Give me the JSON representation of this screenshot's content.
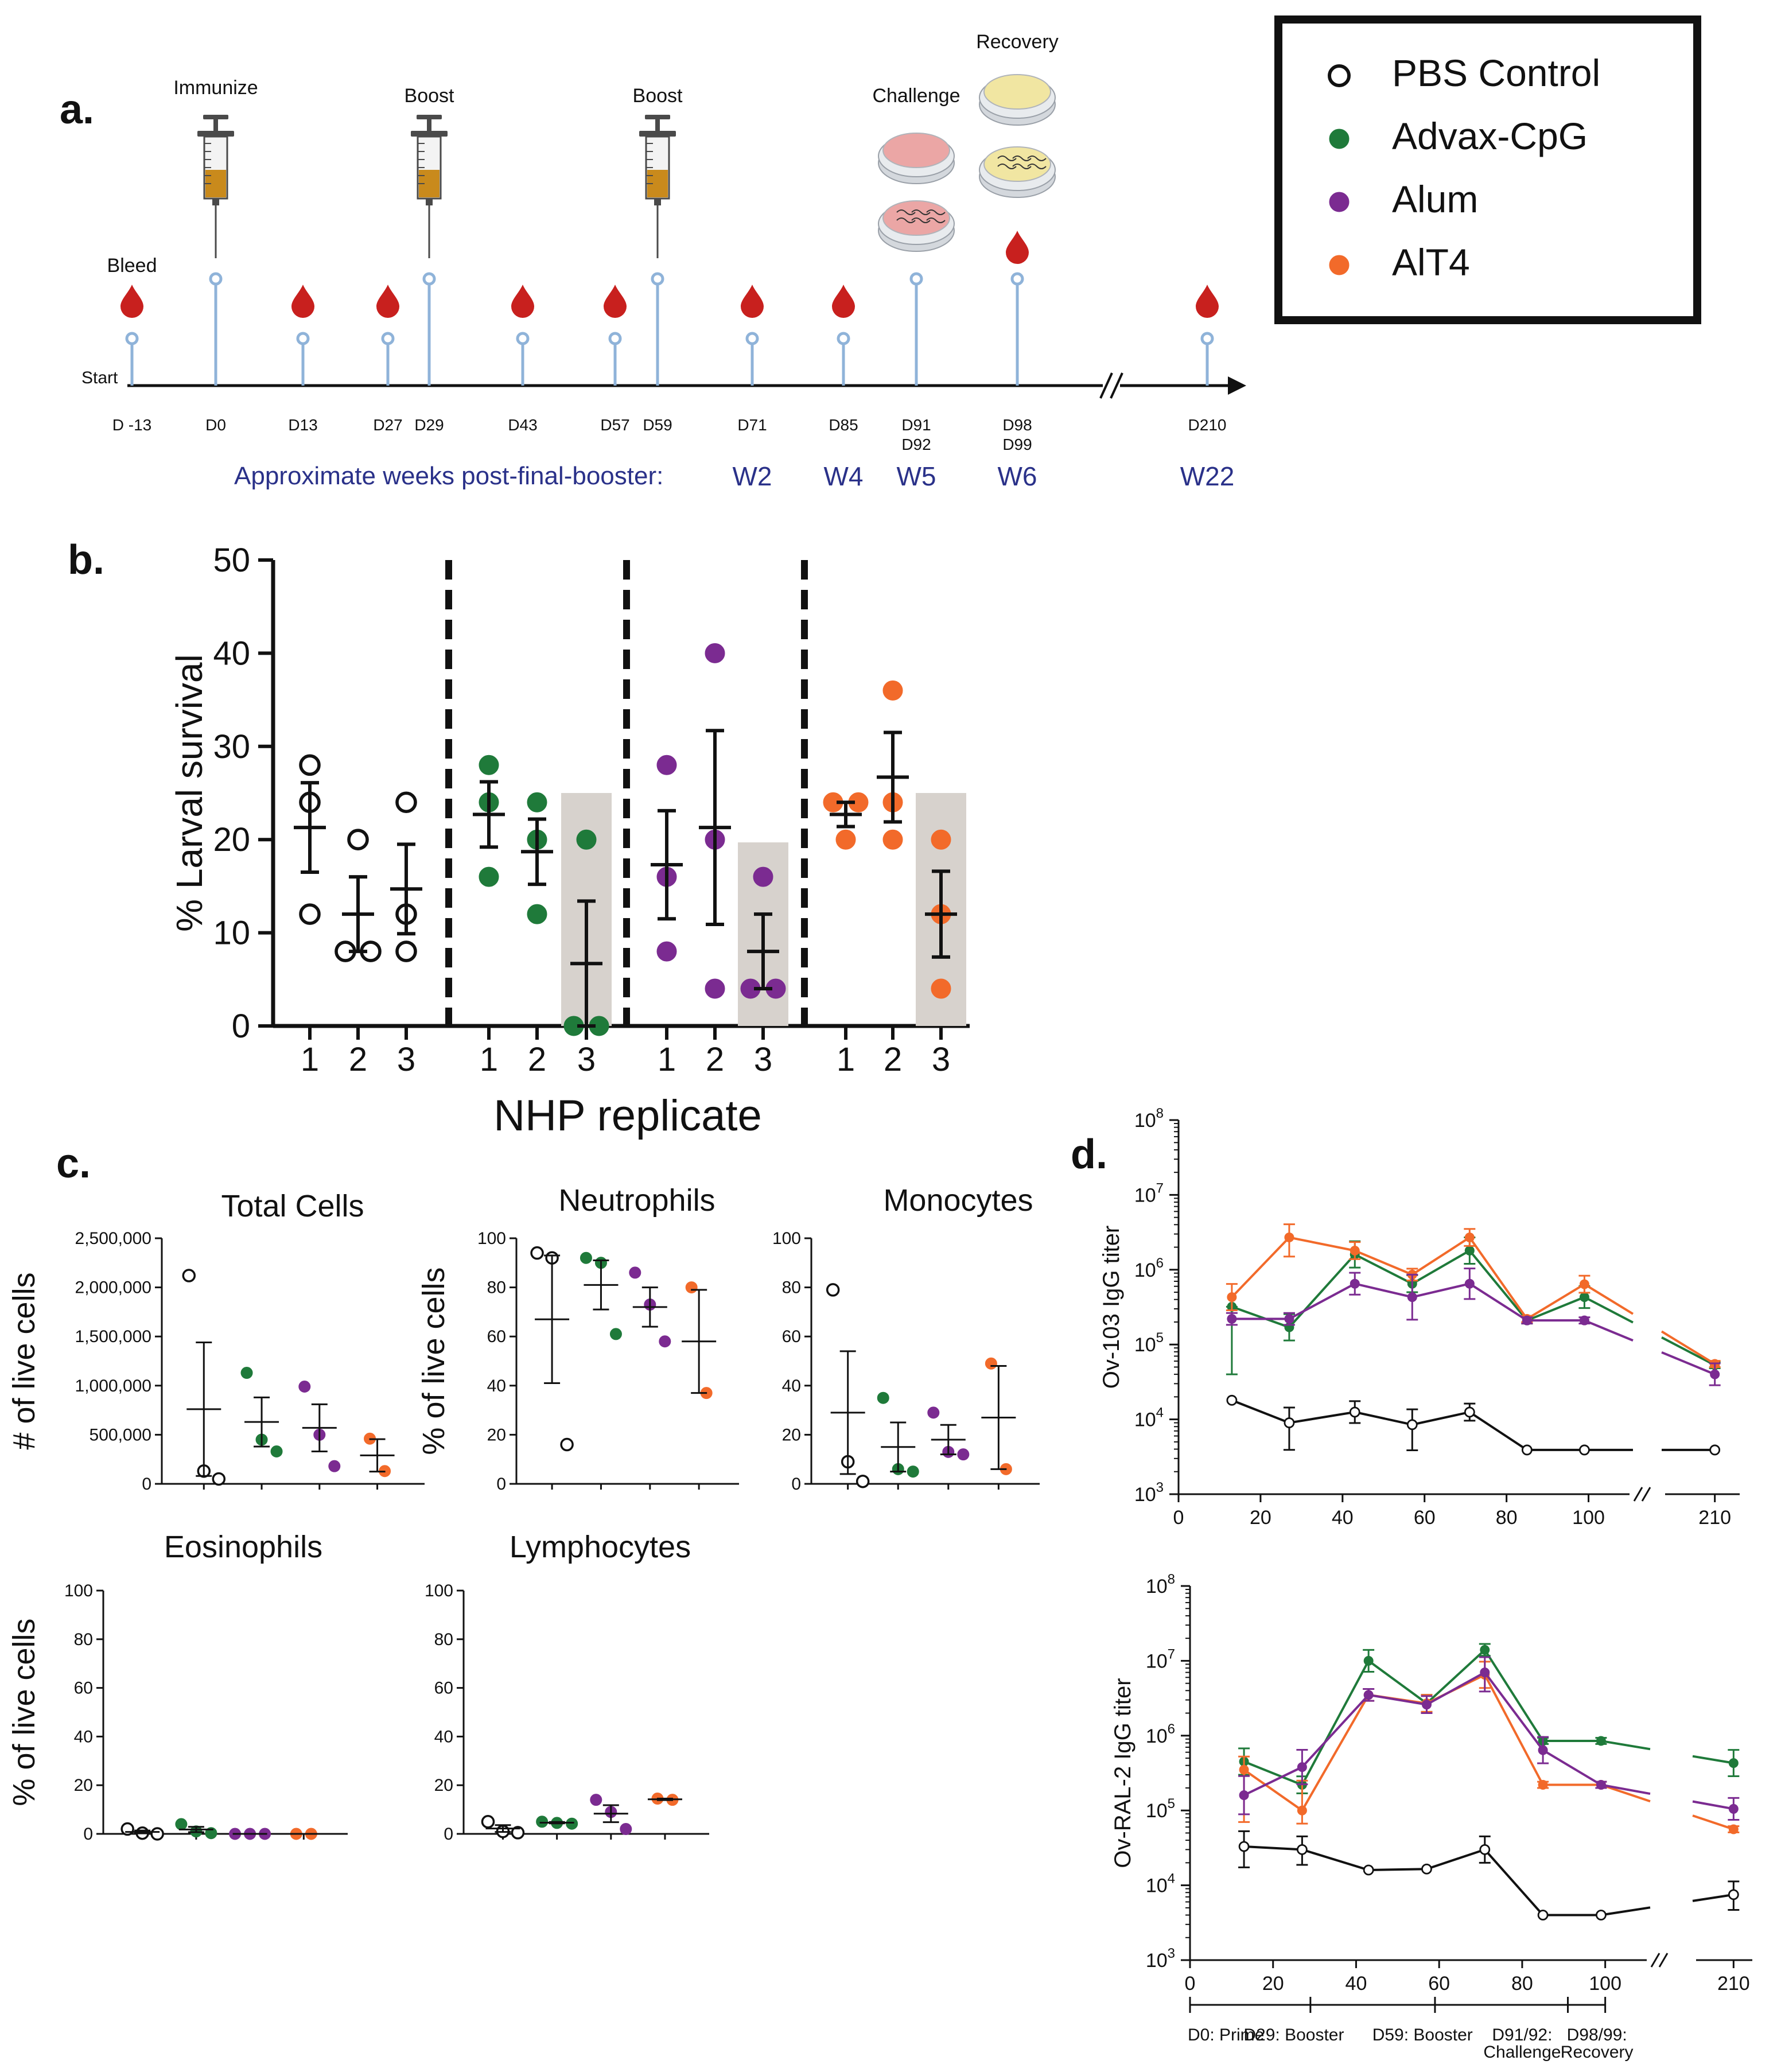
{
  "colors": {
    "pbs": "#111111",
    "advax": "#1f7a3a",
    "alum": "#7b2b91",
    "alt4": "#f26a2a",
    "blood": "#c8201e",
    "pin": "#8fb3d9",
    "week": "#2a3189",
    "shade": "#d7d2cd"
  },
  "panel_a": {
    "label": "a.",
    "start_label": "Start",
    "events": [
      {
        "day": "D -13",
        "event": "Bleed",
        "icon": "blood-drop-icon"
      },
      {
        "day": "D0",
        "event": "Immunize",
        "icon": "syringe-icon"
      },
      {
        "day": "D13",
        "event": "",
        "icon": "blood-drop-icon"
      },
      {
        "day": "D27",
        "event": "",
        "icon": "blood-drop-icon"
      },
      {
        "day": "D29",
        "event": "Boost",
        "icon": "syringe-icon"
      },
      {
        "day": "D43",
        "event": "",
        "icon": "blood-drop-icon"
      },
      {
        "day": "D57",
        "event": "",
        "icon": "blood-drop-icon"
      },
      {
        "day": "D59",
        "event": "Boost",
        "icon": "syringe-icon"
      },
      {
        "day": "D71",
        "event": "",
        "icon": "blood-drop-icon"
      },
      {
        "day": "D85",
        "event": "",
        "icon": "blood-drop-icon"
      },
      {
        "day": "D91",
        "day2": "D92",
        "event": "Challenge",
        "icon": "petri-dish-icon"
      },
      {
        "day": "D98",
        "day2": "D99",
        "event": "Recovery",
        "icon": "petri-dish-icon"
      },
      {
        "day": "D210",
        "event": "",
        "icon": "blood-drop-icon"
      }
    ],
    "weeks_caption": "Approximate weeks post-final-booster:",
    "weeks": [
      "W2",
      "W4",
      "W5",
      "W6",
      "W22"
    ]
  },
  "legend": {
    "items": [
      {
        "label": "PBS Control",
        "key": "pbs",
        "open": true
      },
      {
        "label": "Advax-CpG",
        "key": "advax",
        "open": false
      },
      {
        "label": "Alum",
        "key": "alum",
        "open": false
      },
      {
        "label": "AlT4",
        "key": "alt4",
        "open": false
      }
    ]
  },
  "chart_data": [
    {
      "panel": "b.",
      "type": "scatter",
      "ylabel": "% Larval survival",
      "xlabel": "NHP replicate",
      "ylim": [
        0,
        50
      ],
      "yticks": [
        0,
        10,
        20,
        30,
        40,
        50
      ],
      "groups": [
        {
          "key": "pbs",
          "replicates": [
            {
              "label": "1",
              "points": [
                28,
                24,
                12
              ],
              "mean": 21.3,
              "sem": 4.8,
              "shaded": false
            },
            {
              "label": "2",
              "points": [
                20,
                8,
                8
              ],
              "mean": 12.0,
              "sem": 4.0,
              "shaded": false
            },
            {
              "label": "3",
              "points": [
                24,
                12,
                8
              ],
              "mean": 14.7,
              "sem": 4.8,
              "shaded": false
            }
          ]
        },
        {
          "key": "advax",
          "replicates": [
            {
              "label": "1",
              "points": [
                28,
                24,
                16
              ],
              "mean": 22.7,
              "sem": 3.5,
              "shaded": false
            },
            {
              "label": "2",
              "points": [
                24,
                20,
                12
              ],
              "mean": 18.7,
              "sem": 3.5,
              "shaded": false
            },
            {
              "label": "3",
              "points": [
                20,
                0,
                0
              ],
              "mean": 6.7,
              "sem": 6.7,
              "shaded": true,
              "shade_top": 25
            }
          ]
        },
        {
          "key": "alum",
          "replicates": [
            {
              "label": "1",
              "points": [
                28,
                16,
                8
              ],
              "mean": 17.3,
              "sem": 5.8,
              "shaded": false
            },
            {
              "label": "2",
              "points": [
                40,
                20,
                4
              ],
              "mean": 21.3,
              "sem": 10.4,
              "shaded": false
            },
            {
              "label": "3",
              "points": [
                16,
                4,
                4
              ],
              "mean": 8.0,
              "sem": 4.0,
              "shaded": true,
              "shade_top": 19.7
            }
          ]
        },
        {
          "key": "alt4",
          "replicates": [
            {
              "label": "1",
              "points": [
                24,
                24,
                20
              ],
              "mean": 22.7,
              "sem": 1.3,
              "shaded": false
            },
            {
              "label": "2",
              "points": [
                36,
                24,
                20
              ],
              "mean": 26.7,
              "sem": 4.8,
              "shaded": false
            },
            {
              "label": "3",
              "points": [
                20,
                12,
                4
              ],
              "mean": 12.0,
              "sem": 4.6,
              "shaded": true,
              "shade_top": 25
            }
          ]
        }
      ]
    },
    {
      "panel": "c.",
      "type": "scatter",
      "subplots": [
        {
          "title": "Total Cells",
          "ylabel": "# of live cells",
          "ylim": [
            0,
            2500000
          ],
          "yticks": [
            "0",
            "500,000",
            "1,000,000",
            "1,500,000",
            "2,000,000",
            "2,500,000"
          ],
          "groups": [
            {
              "key": "pbs",
              "points": [
                2120000,
                130000,
                50000
              ],
              "mean": 760000,
              "sem": 680000
            },
            {
              "key": "advax",
              "points": [
                1130000,
                450000,
                330000
              ],
              "mean": 630000,
              "sem": 250000
            },
            {
              "key": "alum",
              "points": [
                990000,
                500000,
                180000
              ],
              "mean": 570000,
              "sem": 240000
            },
            {
              "key": "alt4",
              "points": [
                460000,
                130000
              ],
              "mean": 290000,
              "sem": 165000
            }
          ]
        },
        {
          "title": "Neutrophils",
          "ylabel": "% of live cells",
          "ylim": [
            0,
            100
          ],
          "yticks": [
            "0",
            "20",
            "40",
            "60",
            "80",
            "100"
          ],
          "groups": [
            {
              "key": "pbs",
              "points": [
                94,
                92,
                16
              ],
              "mean": 67,
              "sem": 26
            },
            {
              "key": "advax",
              "points": [
                92,
                90,
                61
              ],
              "mean": 81,
              "sem": 10
            },
            {
              "key": "alum",
              "points": [
                86,
                73,
                58
              ],
              "mean": 72,
              "sem": 8
            },
            {
              "key": "alt4",
              "points": [
                80,
                37
              ],
              "mean": 58,
              "sem": 21
            }
          ]
        },
        {
          "title": "Monocytes",
          "ylabel": "",
          "ylim": [
            0,
            100
          ],
          "yticks": [
            "0",
            "20",
            "40",
            "60",
            "80",
            "100"
          ],
          "groups": [
            {
              "key": "pbs",
              "points": [
                79,
                9,
                1
              ],
              "mean": 29,
              "sem": 25
            },
            {
              "key": "advax",
              "points": [
                35,
                6,
                5
              ],
              "mean": 15,
              "sem": 10
            },
            {
              "key": "alum",
              "points": [
                29,
                13,
                12
              ],
              "mean": 18,
              "sem": 6
            },
            {
              "key": "alt4",
              "points": [
                49,
                6
              ],
              "mean": 27,
              "sem": 21
            }
          ]
        },
        {
          "title": "Eosinophils",
          "ylabel": "% of live cells",
          "ylim": [
            0,
            100
          ],
          "yticks": [
            "0",
            "20",
            "40",
            "60",
            "80",
            "100"
          ],
          "groups": [
            {
              "key": "pbs",
              "points": [
                2,
                0.3,
                0
              ],
              "mean": 0.8,
              "sem": 0.6
            },
            {
              "key": "advax",
              "points": [
                4,
                1,
                0.3
              ],
              "mean": 1.8,
              "sem": 1.1
            },
            {
              "key": "alum",
              "points": [
                0,
                0,
                0
              ],
              "mean": 0,
              "sem": 0
            },
            {
              "key": "alt4",
              "points": [
                0,
                0
              ],
              "mean": 0,
              "sem": 0
            }
          ]
        },
        {
          "title": "Lymphocytes",
          "ylabel": "",
          "ylim": [
            0,
            100
          ],
          "yticks": [
            "0",
            "20",
            "40",
            "60",
            "80",
            "100"
          ],
          "groups": [
            {
              "key": "pbs",
              "points": [
                5,
                1,
                0.5
              ],
              "mean": 2.2,
              "sem": 1.4
            },
            {
              "key": "advax",
              "points": [
                5,
                4.5,
                4.2
              ],
              "mean": 4.6,
              "sem": 0.3
            },
            {
              "key": "alum",
              "points": [
                14,
                9,
                2
              ],
              "mean": 8.3,
              "sem": 3.5
            },
            {
              "key": "alt4",
              "points": [
                14.5,
                14
              ],
              "mean": 14.2,
              "sem": 0.3
            }
          ]
        }
      ]
    },
    {
      "panel": "d.",
      "type": "line",
      "x_ticks": [
        "20",
        "40",
        "60",
        "80",
        "100",
        "210"
      ],
      "y_exponents": [
        3,
        4,
        5,
        6,
        7,
        8
      ],
      "subplots": [
        {
          "ylabel": "Ov-103 IgG titer",
          "ylim_log10": [
            3,
            8
          ],
          "series": [
            {
              "key": "advax",
              "x": [
                13,
                27,
                43,
                57,
                71,
                85,
                99,
                210
              ],
              "y": [
                320000,
                170000,
                1600000,
                650000,
                1800000,
                210000,
                430000,
                53000
              ],
              "err_up": [
                0,
                1.5,
                1.5,
                1.3,
                1.5,
                1.1,
                1.4,
                1.1
              ],
              "err_dn": [
                8,
                1.5,
                1.5,
                1.3,
                1.5,
                1.1,
                1.4,
                1.1
              ]
            },
            {
              "key": "alt4",
              "x": [
                13,
                27,
                43,
                57,
                71,
                85,
                99,
                210
              ],
              "y": [
                430000,
                2700000,
                1800000,
                860000,
                2700000,
                220000,
                640000,
                55000
              ],
              "err_up": [
                1.5,
                1.5,
                1.3,
                1.2,
                1.3,
                1.1,
                1.3,
                1.1
              ],
              "err_dn": [
                1.5,
                1.8,
                1.3,
                1.2,
                1.3,
                1.1,
                1.3,
                1.1
              ]
            },
            {
              "key": "alum",
              "x": [
                13,
                27,
                43,
                57,
                71,
                85,
                99,
                210
              ],
              "y": [
                220000,
                220000,
                650000,
                430000,
                650000,
                210000,
                210000,
                40000
              ],
              "err_up": [
                1.2,
                1.2,
                1.4,
                2.0,
                1.6,
                1.1,
                1.1,
                1.4
              ],
              "err_dn": [
                1.2,
                1.2,
                1.4,
                2.0,
                1.6,
                1.1,
                1.1,
                1.4
              ]
            },
            {
              "key": "pbs",
              "x": [
                13,
                27,
                43,
                57,
                71,
                85,
                99,
                210
              ],
              "y": [
                18000,
                9000,
                12500,
                8500,
                12500,
                3900,
                3900,
                3900
              ],
              "err_up": [
                1,
                1.6,
                1.4,
                1.6,
                1.3,
                1,
                1,
                1
              ],
              "err_dn": [
                1,
                2.3,
                1.4,
                2.2,
                1.3,
                1,
                1,
                1
              ]
            }
          ]
        },
        {
          "ylabel": "Ov-RAL-2 IgG titer",
          "ylim_log10": [
            3,
            8
          ],
          "series": [
            {
              "key": "advax",
              "x": [
                13,
                27,
                43,
                57,
                71,
                85,
                99,
                210
              ],
              "y": [
                450000,
                220000,
                10000000,
                2700000,
                14000000,
                850000,
                850000,
                430000
              ],
              "err_up": [
                1.5,
                1.3,
                1.4,
                1.3,
                1.2,
                1.1,
                1.1,
                1.5
              ],
              "err_dn": [
                1.5,
                1.3,
                1.4,
                1.3,
                1.2,
                1.1,
                1.1,
                1.5
              ]
            },
            {
              "key": "alt4",
              "x": [
                13,
                27,
                43,
                57,
                71,
                85,
                99,
                210
              ],
              "y": [
                350000,
                100000,
                3500000,
                2700000,
                6500000,
                220000,
                220000,
                56000
              ],
              "err_up": [
                1.5,
                2.5,
                1.2,
                1.3,
                1.5,
                1.1,
                1.1,
                1.1
              ],
              "err_dn": [
                5,
                1.5,
                1.2,
                1.3,
                1.5,
                1.1,
                1.1,
                1.1
              ]
            },
            {
              "key": "alum",
              "x": [
                13,
                27,
                43,
                57,
                71,
                85,
                99,
                210
              ],
              "y": [
                160000,
                380000,
                3500000,
                2600000,
                7000000,
                640000,
                220000,
                105000
              ],
              "err_up": [
                1.8,
                1.7,
                1.2,
                1.3,
                1.6,
                1.5,
                1.1,
                1.4
              ],
              "err_dn": [
                1.8,
                1.7,
                1.2,
                1.3,
                1.8,
                1.5,
                1.1,
                1.4
              ]
            },
            {
              "key": "pbs",
              "x": [
                13,
                27,
                43,
                57,
                71,
                85,
                99,
                210
              ],
              "y": [
                33000,
                30000,
                16000,
                16500,
                30000,
                4000,
                4000,
                7500
              ],
              "err_up": [
                1.6,
                1.5,
                1,
                1,
                1.5,
                1,
                1,
                1.5
              ],
              "err_dn": [
                1.9,
                1.6,
                1,
                1,
                1.5,
                1,
                1,
                1.6
              ]
            }
          ]
        }
      ],
      "timeline": {
        "prime": "D0: Prime",
        "booster1": "D29: Booster",
        "booster2": "D59: Booster",
        "challenge": "D91/92:",
        "challenge2": "Challenge",
        "recovery": "D98/99:",
        "recovery2": "Recovery"
      }
    }
  ]
}
